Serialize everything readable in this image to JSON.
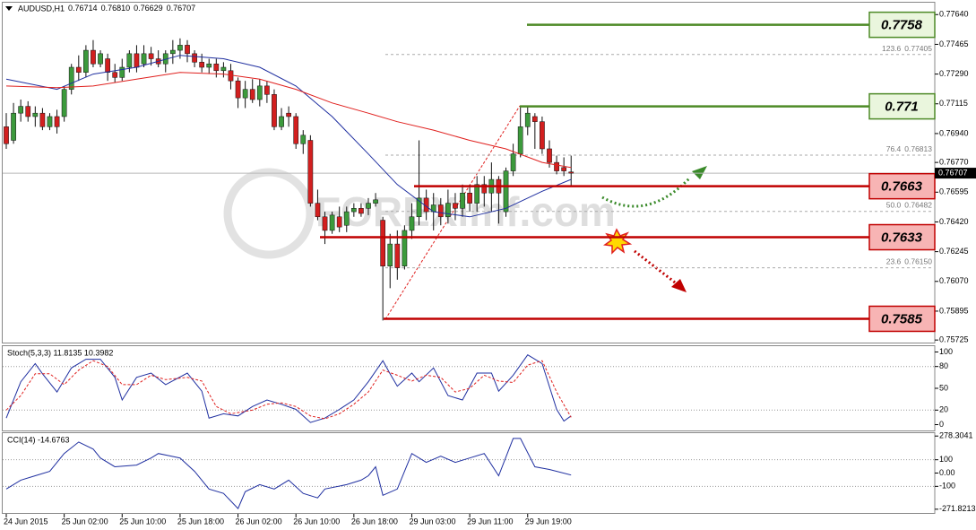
{
  "chart_data": [
    {
      "type": "candlestick",
      "title": "AUDUSD,H1",
      "last_ohlc": [
        0.76714,
        {
          "value": 0.7681,
          "label": "0.76810"
        },
        0.76629,
        0.76707
      ],
      "watermark": "FOREXimf.com",
      "categories": [
        "24 Jun 2015",
        null,
        null,
        null,
        null,
        null,
        null,
        null,
        "25 Jun 02:00",
        null,
        null,
        null,
        null,
        null,
        null,
        null,
        "25 Jun 10:00",
        null,
        null,
        null,
        null,
        null,
        null,
        null,
        "25 Jun 18:00",
        null,
        null,
        null,
        null,
        null,
        null,
        null,
        "26 Jun 02:00",
        null,
        null,
        null,
        null,
        null,
        null,
        null,
        "26 Jun 10:00",
        null,
        null,
        null,
        null,
        null,
        null,
        null,
        "26 Jun 18:00",
        null,
        null,
        null,
        null,
        null,
        null,
        null,
        "29 Jun 03:00",
        null,
        null,
        null,
        null,
        null,
        null,
        null,
        "29 Jun 11:00",
        null,
        null,
        null,
        null,
        null,
        null,
        null,
        "29 Jun 19:00",
        null,
        null,
        null,
        null,
        null,
        null
      ],
      "open": [
        0.7698,
        0.769,
        0.7706,
        0.771,
        0.7704,
        0.7706,
        0.7698,
        0.7704,
        0.7704,
        0.772,
        0.7733,
        0.773,
        0.7743,
        0.7735,
        0.7738,
        0.773,
        0.7727,
        0.7733,
        0.7741,
        0.7735,
        0.7741,
        0.7738,
        0.7735,
        0.7741,
        0.7743,
        0.7746,
        0.7741,
        0.7736,
        0.7733,
        0.7735,
        0.7731,
        0.7731,
        0.7725,
        0.7715,
        0.772,
        0.7714,
        0.7722,
        0.7717,
        0.7698,
        0.7706,
        0.7704,
        0.7688,
        0.769,
        0.7653,
        0.7645,
        0.7637,
        0.7645,
        0.764,
        0.7648,
        0.765,
        0.765,
        0.7653,
        0.7643,
        0.7616,
        0.7629,
        0.7616,
        0.7637,
        0.7645,
        0.7656,
        0.7648,
        0.7652,
        0.7645,
        0.7653,
        0.765,
        0.7659,
        0.7653,
        0.7664,
        0.7659,
        0.7667,
        0.7648,
        0.7672,
        0.7682,
        0.7698,
        0.7704,
        0.7701,
        0.7685,
        0.7677,
        0.7674,
        0.76714
      ],
      "high": [
        0.7706,
        0.7712,
        0.7714,
        0.7713,
        0.771,
        0.7709,
        0.7706,
        0.7708,
        0.7722,
        0.7735,
        0.774,
        0.7746,
        0.7749,
        0.7743,
        0.7741,
        0.7735,
        0.7738,
        0.7743,
        0.7746,
        0.7746,
        0.7745,
        0.7743,
        0.7743,
        0.7749,
        0.775,
        0.7749,
        0.7743,
        0.7741,
        0.7738,
        0.7738,
        0.7736,
        0.7735,
        0.7727,
        0.7725,
        0.7726,
        0.7726,
        0.7725,
        0.772,
        0.7709,
        0.771,
        0.7706,
        0.7696,
        0.7693,
        0.7661,
        0.7648,
        0.7648,
        0.7651,
        0.7651,
        0.7653,
        0.7653,
        0.7656,
        0.7659,
        0.7645,
        0.7635,
        0.7637,
        0.764,
        0.7653,
        0.769,
        0.7661,
        0.7659,
        0.7656,
        0.7661,
        0.7659,
        0.7664,
        0.7664,
        0.7669,
        0.7669,
        0.7677,
        0.7669,
        0.7674,
        0.7688,
        0.771,
        0.771,
        0.7706,
        0.7704,
        0.769,
        0.7681,
        0.768,
        0.7681
      ],
      "low": [
        0.7685,
        0.7688,
        0.7701,
        0.7701,
        0.7698,
        0.7696,
        0.7696,
        0.7694,
        0.7701,
        0.7717,
        0.7725,
        0.7727,
        0.7733,
        0.7733,
        0.7725,
        0.7724,
        0.7725,
        0.773,
        0.773,
        0.7733,
        0.7734,
        0.7733,
        0.773,
        0.7735,
        0.7738,
        0.7736,
        0.7733,
        0.773,
        0.7729,
        0.7727,
        0.7727,
        0.772,
        0.7709,
        0.7709,
        0.7712,
        0.771,
        0.7712,
        0.7696,
        0.7696,
        0.7698,
        0.7685,
        0.7682,
        0.7651,
        0.7643,
        0.7629,
        0.7635,
        0.7636,
        0.7636,
        0.7645,
        0.7645,
        0.7646,
        0.7651,
        0.7584,
        0.7603,
        0.7608,
        0.7614,
        0.7632,
        0.764,
        0.7643,
        0.7637,
        0.764,
        0.7641,
        0.7643,
        0.7645,
        0.7648,
        0.7648,
        0.7651,
        0.7648,
        0.7641,
        0.7645,
        0.7669,
        0.768,
        0.7693,
        0.7685,
        0.7682,
        0.7674,
        0.767,
        0.7669,
        0.76629
      ],
      "close": [
        0.7688,
        0.7706,
        0.771,
        0.7704,
        0.7706,
        0.7698,
        0.7704,
        0.7698,
        0.772,
        0.7733,
        0.773,
        0.7743,
        0.7735,
        0.7741,
        0.773,
        0.7727,
        0.7733,
        0.7741,
        0.7733,
        0.7741,
        0.7738,
        0.7735,
        0.7741,
        0.7743,
        0.7746,
        0.7741,
        0.7736,
        0.7733,
        0.7735,
        0.7731,
        0.7733,
        0.7725,
        0.7715,
        0.772,
        0.7714,
        0.7722,
        0.7717,
        0.7698,
        0.7704,
        0.7704,
        0.7688,
        0.7693,
        0.7653,
        0.7645,
        0.7637,
        0.7646,
        0.7639,
        0.7648,
        0.765,
        0.7647,
        0.7653,
        0.7655,
        0.7616,
        0.7629,
        0.7615,
        0.7637,
        0.7645,
        0.7656,
        0.7648,
        0.7652,
        0.7645,
        0.7653,
        0.765,
        0.7659,
        0.7653,
        0.7664,
        0.7659,
        0.7667,
        0.7659,
        0.7672,
        0.7682,
        0.7698,
        0.7706,
        0.7701,
        0.7685,
        0.7677,
        0.7672,
        0.7672,
        0.76707
      ],
      "bull_color": "#3c9a3c",
      "bear_color": "#d21f1f",
      "overlays": [
        {
          "color": "#1f2fa0",
          "x": [
            0,
            7,
            12,
            18,
            24,
            30,
            35,
            40,
            45,
            50,
            54,
            59,
            64,
            69,
            74,
            78
          ],
          "values": [
            0.7726,
            0.772,
            0.7729,
            0.7733,
            0.774,
            0.7738,
            0.7733,
            0.7722,
            0.7704,
            0.7682,
            0.7664,
            0.7648,
            0.7645,
            0.765,
            0.766,
            0.7667
          ]
        },
        {
          "color": "#e0201e",
          "x": [
            0,
            7,
            12,
            18,
            24,
            30,
            35,
            40,
            45,
            50,
            54,
            59,
            64,
            69,
            74,
            78
          ],
          "values": [
            0.7722,
            0.7721,
            0.7722,
            0.7726,
            0.773,
            0.7729,
            0.7726,
            0.772,
            0.7712,
            0.7706,
            0.7701,
            0.7696,
            0.769,
            0.7685,
            0.7677,
            0.7674
          ]
        }
      ],
      "fib_levels": [
        {
          "level": "123.6",
          "price": 0.77405
        },
        {
          "level": "76.4",
          "price": 0.76813
        },
        {
          "level": "50.0",
          "price": 0.76482
        },
        {
          "level": "23.6",
          "price": {
            "value": 0.7615,
            "label": "0.76150"
          }
        }
      ],
      "sr_levels": [
        {
          "value": 0.7758,
          "color": "#4d8a26",
          "fill": "#eaf6dd"
        },
        {
          "value": 0.771,
          "color": "#4d8a26",
          "fill": "#eaf6dd"
        },
        {
          "value": 0.7663,
          "color": "#c00000",
          "fill": "#f7b4b4"
        },
        {
          "value": 0.7633,
          "color": "#c00000",
          "fill": "#f7b4b4"
        },
        {
          "value": 0.7585,
          "color": "#c00000",
          "fill": "#f7b4b4"
        }
      ],
      "ylim": [
        0.7571,
        0.7771
      ],
      "yticks": [
        {
          "value": 0.7764,
          "label": "0.77640"
        },
        0.77465,
        {
          "value": 0.7729,
          "label": "0.77290"
        },
        0.77115,
        {
          "value": 0.7694,
          "label": "0.76940"
        },
        {
          "value": 0.7677,
          "label": "0.76770"
        },
        0.76595,
        {
          "value": 0.7642,
          "label": "0.76420"
        },
        0.76245,
        {
          "value": 0.7607,
          "label": "0.76070"
        },
        0.75895,
        0.75725
      ]
    },
    {
      "type": "line",
      "title": "Stoch(5,3,3) 11.8135 10.3982",
      "series": [
        {
          "color": "#1f2fa0",
          "x": [
            0,
            2,
            4,
            5,
            7,
            9,
            11,
            13,
            15,
            16,
            18,
            20,
            22,
            25,
            27,
            28,
            30,
            32,
            34,
            36,
            38,
            40,
            42,
            44,
            46,
            48,
            50,
            52,
            53,
            54,
            56,
            57,
            59,
            61,
            63,
            65,
            67,
            68,
            70,
            72,
            74,
            76,
            77,
            78
          ],
          "values": [
            9,
            59,
            84,
            70,
            45,
            78,
            90,
            90,
            65,
            34,
            65,
            71,
            55,
            71,
            46,
            9,
            15,
            12,
            25,
            34,
            28,
            21,
            3,
            9,
            21,
            34,
            59,
            88,
            70,
            53,
            71,
            59,
            78,
            40,
            34,
            71,
            71,
            46,
            68,
            96,
            84,
            21,
            5,
            12
          ]
        },
        {
          "color": "#e0201e",
          "dashed": true,
          "x": [
            0,
            2,
            4,
            6,
            8,
            10,
            12,
            14,
            16,
            18,
            20,
            22,
            25,
            27,
            29,
            31,
            34,
            36,
            38,
            40,
            42,
            44,
            46,
            48,
            50,
            52,
            54,
            56,
            58,
            60,
            62,
            64,
            66,
            68,
            70,
            72,
            74,
            76,
            78
          ],
          "values": [
            20,
            40,
            70,
            70,
            55,
            75,
            88,
            80,
            55,
            55,
            68,
            62,
            65,
            60,
            25,
            15,
            20,
            28,
            30,
            25,
            12,
            8,
            15,
            28,
            45,
            75,
            68,
            60,
            68,
            65,
            45,
            50,
            68,
            60,
            58,
            82,
            88,
            45,
            10
          ]
        }
      ],
      "levels": [
        80,
        20
      ],
      "ylim": [
        -8,
        108
      ],
      "yticks": [
        100,
        80,
        50,
        20,
        0
      ]
    },
    {
      "type": "line",
      "title": "CCI(14) -14.6763",
      "series": [
        {
          "color": "#1f2fa0",
          "x": [
            0,
            2,
            4,
            6,
            8,
            10,
            12,
            13,
            15,
            18,
            20,
            21,
            24,
            26,
            28,
            30,
            32,
            33,
            35,
            37,
            39,
            41,
            43,
            44,
            47,
            49,
            50,
            51,
            52,
            54,
            56,
            58,
            60,
            62,
            64,
            66,
            68,
            70,
            71,
            73,
            75,
            78
          ],
          "values": [
            -120,
            -53,
            -20,
            13,
            147,
            233,
            180,
            113,
            47,
            60,
            113,
            147,
            113,
            13,
            -120,
            -153,
            -267,
            -140,
            -87,
            -120,
            -53,
            -153,
            -187,
            -120,
            -87,
            -53,
            -20,
            47,
            -167,
            -120,
            147,
            80,
            127,
            80,
            113,
            147,
            -20,
            260,
            260,
            47,
            27,
            -15
          ]
        }
      ],
      "levels": [
        100,
        -100
      ],
      "ylim": [
        -300,
        300
      ],
      "yticks": [
        278.3041,
        100,
        {
          "value": 0,
          "label": "0.00"
        },
        -100,
        -271.8213
      ]
    }
  ]
}
